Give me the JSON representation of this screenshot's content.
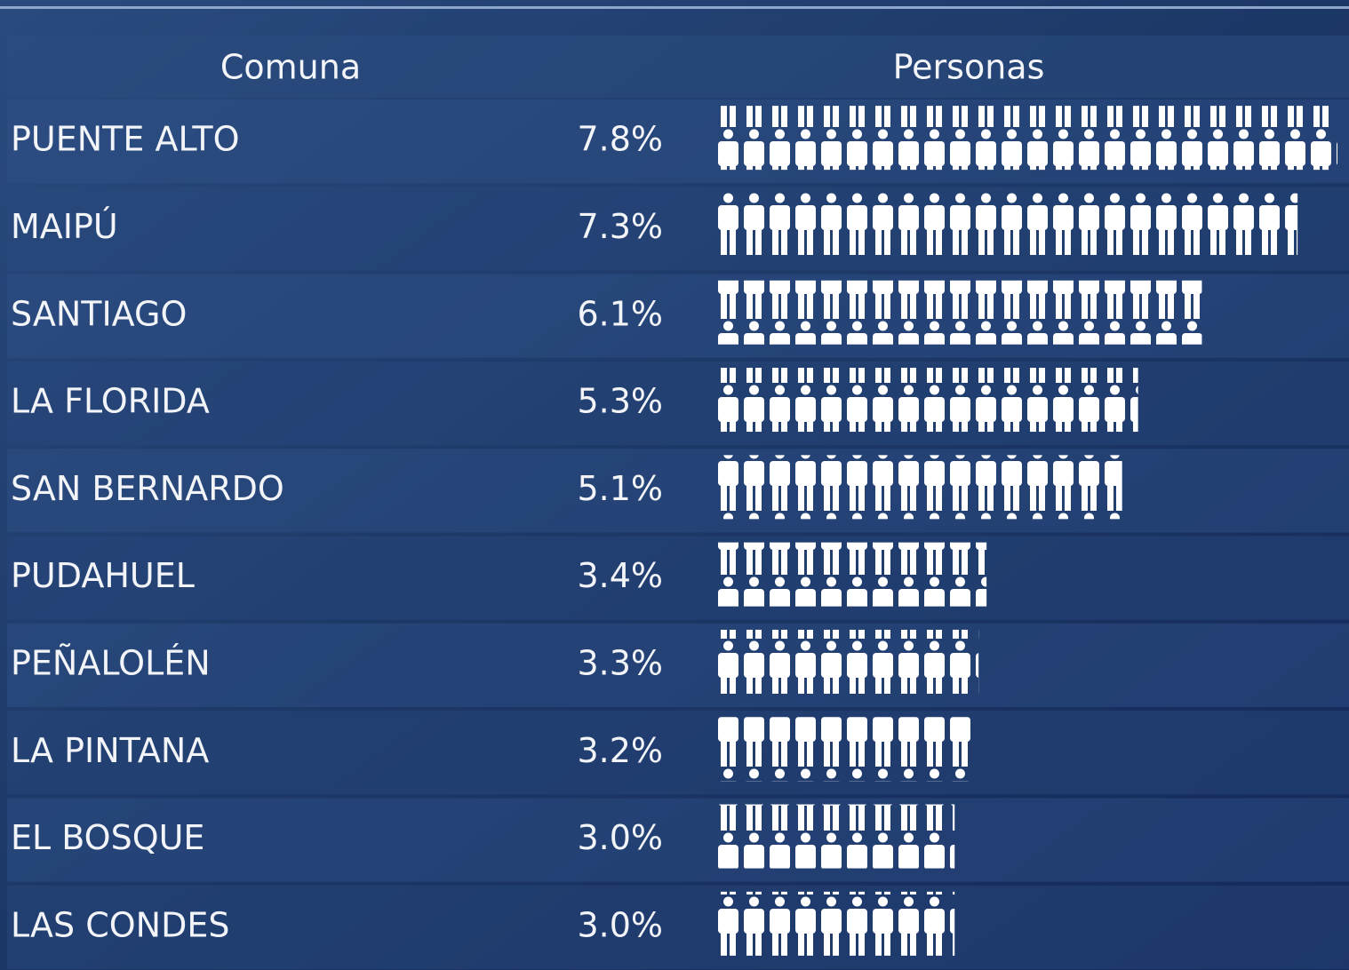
{
  "chart_data": {
    "type": "pictograph",
    "category_header": "Comuna",
    "value_header": "Personas",
    "categories": [
      "PUENTE ALTO",
      "MAIPÚ",
      "SANTIAGO",
      "LA FLORIDA",
      "SAN BERNARDO",
      "PUDAHUEL",
      "PEÑALOLÉN",
      "LA PINTANA",
      "EL BOSQUE",
      "LAS CONDES"
    ],
    "values": [
      7.8,
      7.3,
      6.1,
      5.3,
      5.1,
      3.4,
      3.3,
      3.2,
      3.0,
      3.0
    ],
    "value_labels": [
      "7.8%",
      "7.3%",
      "6.1%",
      "5.3%",
      "5.1%",
      "3.4%",
      "3.3%",
      "3.2%",
      "3.0%",
      "3.0%"
    ],
    "color": "#ffffff"
  }
}
